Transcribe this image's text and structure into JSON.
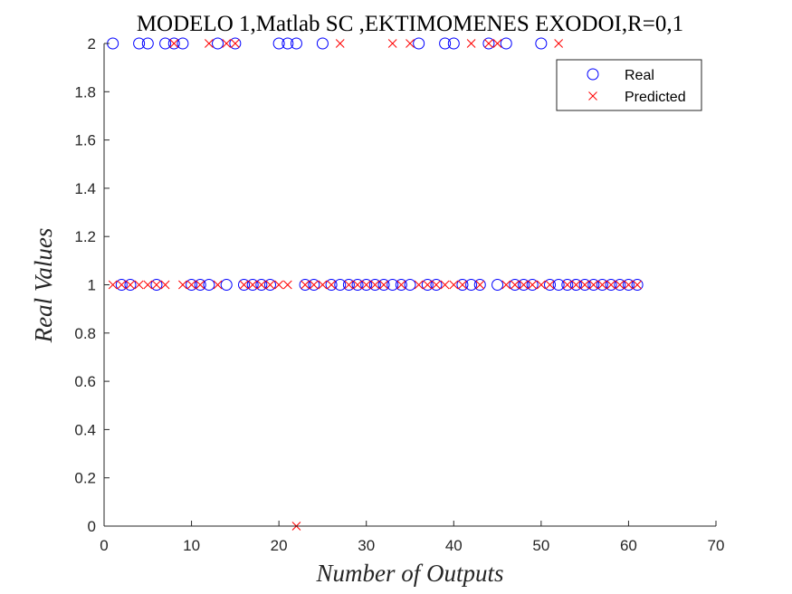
{
  "chart_data": {
    "type": "scatter",
    "title": "MODELO 1,Matlab SC ,EKTIMOMENES EXODOI,R=0,1",
    "xlabel": "Number of Outputs",
    "ylabel": "Real Values",
    "xlim": [
      0,
      70
    ],
    "ylim": [
      0,
      2
    ],
    "xticks": [
      "0",
      "10",
      "20",
      "30",
      "40",
      "50",
      "60",
      "70"
    ],
    "yticks": [
      "0",
      "0.2",
      "0.4",
      "0.6",
      "0.8",
      "1",
      "1.2",
      "1.4",
      "1.6",
      "1.8",
      "2"
    ],
    "grid": false,
    "legend_position": "top-right",
    "series": [
      {
        "name": "Real",
        "marker": "circle",
        "color": "#0000ff",
        "x": [
          1,
          2,
          3,
          4,
          5,
          6,
          7,
          8,
          9,
          10,
          11,
          12,
          13,
          14,
          15,
          16,
          17,
          18,
          19,
          20,
          21,
          22,
          23,
          24,
          25,
          26,
          27,
          28,
          29,
          30,
          31,
          32,
          33,
          34,
          35,
          36,
          37,
          38,
          39,
          40,
          41,
          42,
          43,
          44,
          45,
          46,
          47,
          48,
          49,
          50,
          51,
          52,
          53,
          54,
          55,
          56,
          57,
          58,
          59,
          60,
          61
        ],
        "y": [
          2,
          1,
          1,
          2,
          2,
          1,
          2,
          2,
          2,
          1,
          1,
          1,
          2,
          1,
          2,
          1,
          1,
          1,
          1,
          2,
          2,
          2,
          1,
          1,
          2,
          1,
          1,
          1,
          1,
          1,
          1,
          1,
          1,
          1,
          1,
          2,
          1,
          1,
          2,
          2,
          1,
          1,
          1,
          2,
          1,
          2,
          1,
          1,
          1,
          2,
          1,
          1,
          1,
          1,
          1,
          1,
          1,
          1,
          1,
          1,
          1
        ]
      },
      {
        "name": "Predicted",
        "marker": "x",
        "color": "#ff0000",
        "x": [
          1,
          2,
          3,
          4,
          5,
          6,
          7,
          8,
          9,
          10,
          11,
          12,
          13,
          14,
          15,
          16,
          17,
          18,
          19,
          20,
          21,
          22,
          23,
          24,
          25,
          26,
          27,
          28,
          29,
          30,
          31,
          32,
          33,
          34,
          35,
          36,
          37,
          38,
          39,
          40,
          41,
          42,
          43,
          44,
          45,
          46,
          47,
          48,
          49,
          50,
          51,
          52,
          53,
          54,
          55,
          56,
          57,
          58,
          59,
          60,
          61
        ],
        "y": [
          1,
          1,
          1,
          1,
          1,
          1,
          1,
          2,
          1,
          1,
          1,
          2,
          1,
          2,
          2,
          1,
          1,
          1,
          1,
          1,
          1,
          0,
          1,
          1,
          1,
          1,
          2,
          1,
          1,
          1,
          1,
          1,
          2,
          1,
          2,
          1,
          1,
          1,
          1,
          1,
          1,
          2,
          1,
          2,
          2,
          1,
          1,
          1,
          1,
          1,
          1,
          2,
          1,
          1,
          1,
          1,
          1,
          1,
          1,
          1,
          1
        ]
      }
    ]
  }
}
